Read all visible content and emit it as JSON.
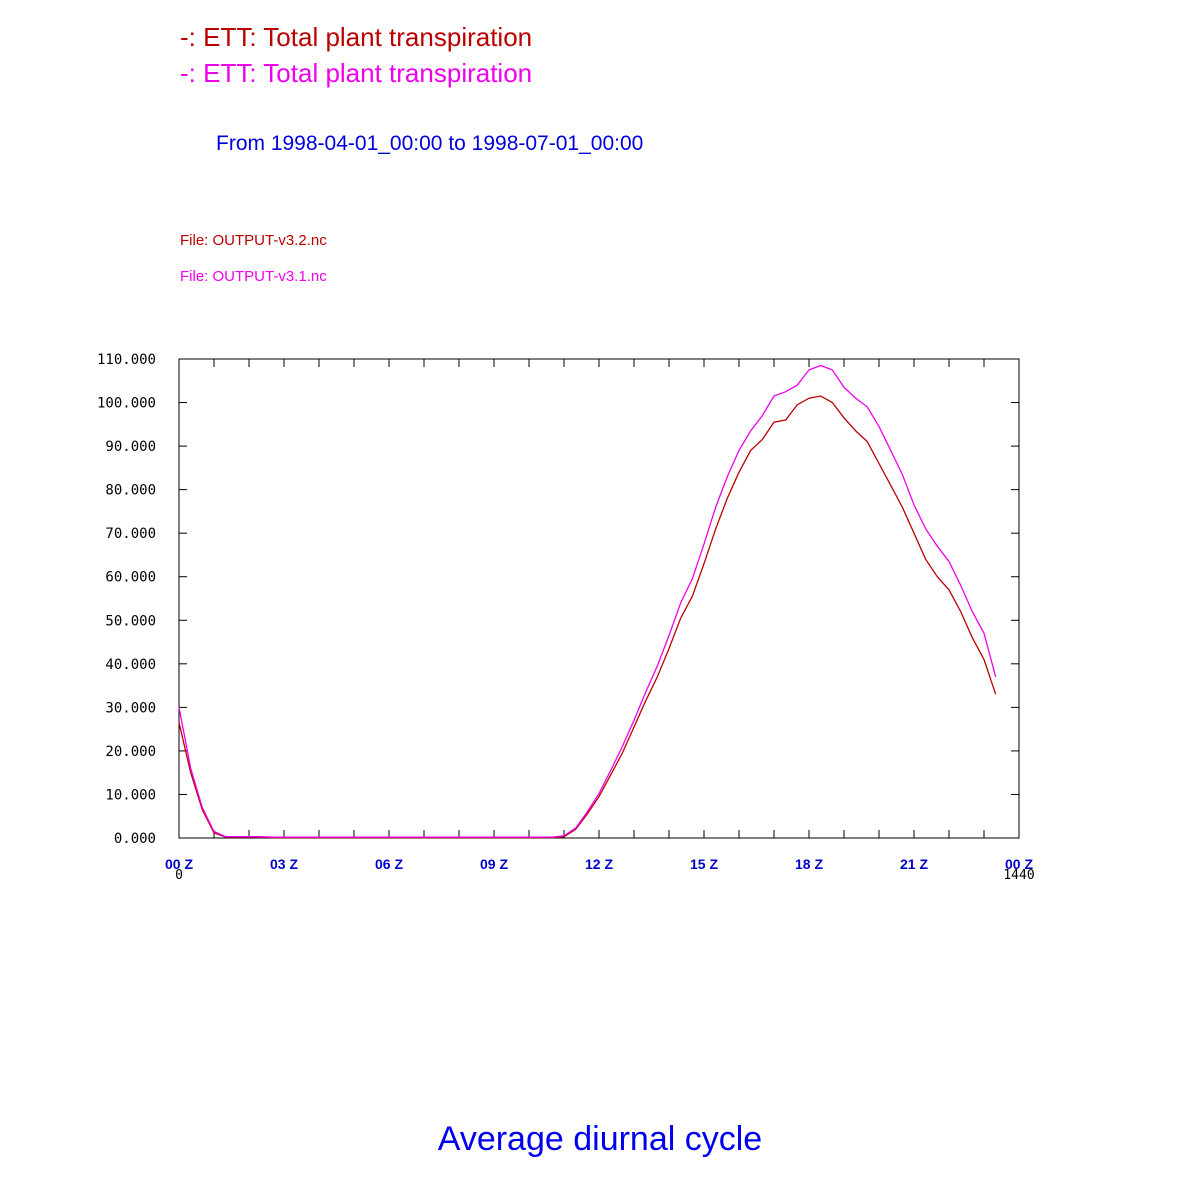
{
  "legend": [
    {
      "text": "-: ETT: Total plant transpiration",
      "color": "#bb0000"
    },
    {
      "text": "-: ETT: Total plant transpiration",
      "color": "#ee00ee"
    }
  ],
  "period": "From 1998-04-01_00:00 to 1998-07-01_00:00",
  "files": [
    {
      "text": "File: OUTPUT-v3.2.nc",
      "color": "#bb0000"
    },
    {
      "text": "File: OUTPUT-v3.1.nc",
      "color": "#ee00ee"
    }
  ],
  "bottom_title": "Average diurnal cycle",
  "chart_data": {
    "type": "line",
    "title": "Average diurnal cycle",
    "xlabel": "",
    "ylabel": "",
    "xlim": [
      0,
      1440
    ],
    "ylim": [
      0,
      110
    ],
    "grid": false,
    "x_step": 20,
    "x_ticks": [
      {
        "value": 0,
        "label": "00 Z"
      },
      {
        "value": 180,
        "label": "03 Z"
      },
      {
        "value": 360,
        "label": "06 Z"
      },
      {
        "value": 540,
        "label": "09 Z"
      },
      {
        "value": 720,
        "label": "12 Z"
      },
      {
        "value": 900,
        "label": "15 Z"
      },
      {
        "value": 1080,
        "label": "18 Z"
      },
      {
        "value": 1260,
        "label": "21 Z"
      },
      {
        "value": 1440,
        "label": "00 Z"
      }
    ],
    "x_index_labels": [
      {
        "value": 0,
        "label": "0"
      },
      {
        "value": 1440,
        "label": "1440"
      }
    ],
    "y_ticks": [
      "0.000",
      "10.000",
      "20.000",
      "30.000",
      "40.000",
      "50.000",
      "60.000",
      "70.000",
      "80.000",
      "90.000",
      "100.000",
      "110.000"
    ],
    "y_tick_values": [
      0,
      10,
      20,
      30,
      40,
      50,
      60,
      70,
      80,
      90,
      100,
      110
    ],
    "series": [
      {
        "name": "-: ETT: Total plant transpiration (OUTPUT-v3.2.nc)",
        "color": "#bb0000",
        "values": [
          26.5,
          15,
          6.5,
          1.2,
          0.2,
          0.2,
          0.2,
          0.2,
          0.1,
          0.1,
          0.1,
          0.1,
          0.1,
          0.1,
          0.1,
          0.1,
          0.1,
          0.1,
          0.1,
          0.1,
          0.1,
          0.1,
          0.1,
          0.1,
          0.1,
          0.1,
          0.1,
          0.1,
          0.1,
          0.1,
          0.1,
          0.1,
          0.1,
          0.3,
          2,
          5.5,
          9.5,
          14.5,
          19.5,
          25.5,
          31.5,
          37,
          43.5,
          50.5,
          55.5,
          63,
          71,
          78,
          84,
          89,
          91.5,
          95.5,
          96,
          99.5,
          101,
          101.5,
          100,
          96.5,
          93.5,
          91,
          86,
          81,
          76,
          70,
          64,
          60,
          57,
          52,
          46,
          41,
          33
        ]
      },
      {
        "name": "-: ETT: Total plant transpiration (OUTPUT-v3.1.nc)",
        "color": "#ee00ee",
        "values": [
          30,
          16,
          7,
          1.5,
          0.3,
          0.3,
          0.3,
          0.3,
          0.2,
          0.2,
          0.2,
          0.2,
          0.2,
          0.2,
          0.2,
          0.2,
          0.2,
          0.2,
          0.2,
          0.2,
          0.2,
          0.2,
          0.2,
          0.2,
          0.2,
          0.2,
          0.2,
          0.2,
          0.2,
          0.2,
          0.2,
          0.2,
          0.2,
          0.5,
          2.3,
          6,
          10.2,
          15.5,
          21,
          27,
          33.5,
          39.5,
          46.5,
          54,
          59.5,
          67.5,
          76,
          83,
          89,
          93.5,
          97,
          101.5,
          102.5,
          104,
          107.5,
          108.5,
          107.5,
          103.5,
          101,
          99,
          94.5,
          89,
          83.5,
          76.5,
          71,
          67,
          63.5,
          58,
          52,
          47,
          37
        ]
      }
    ]
  }
}
